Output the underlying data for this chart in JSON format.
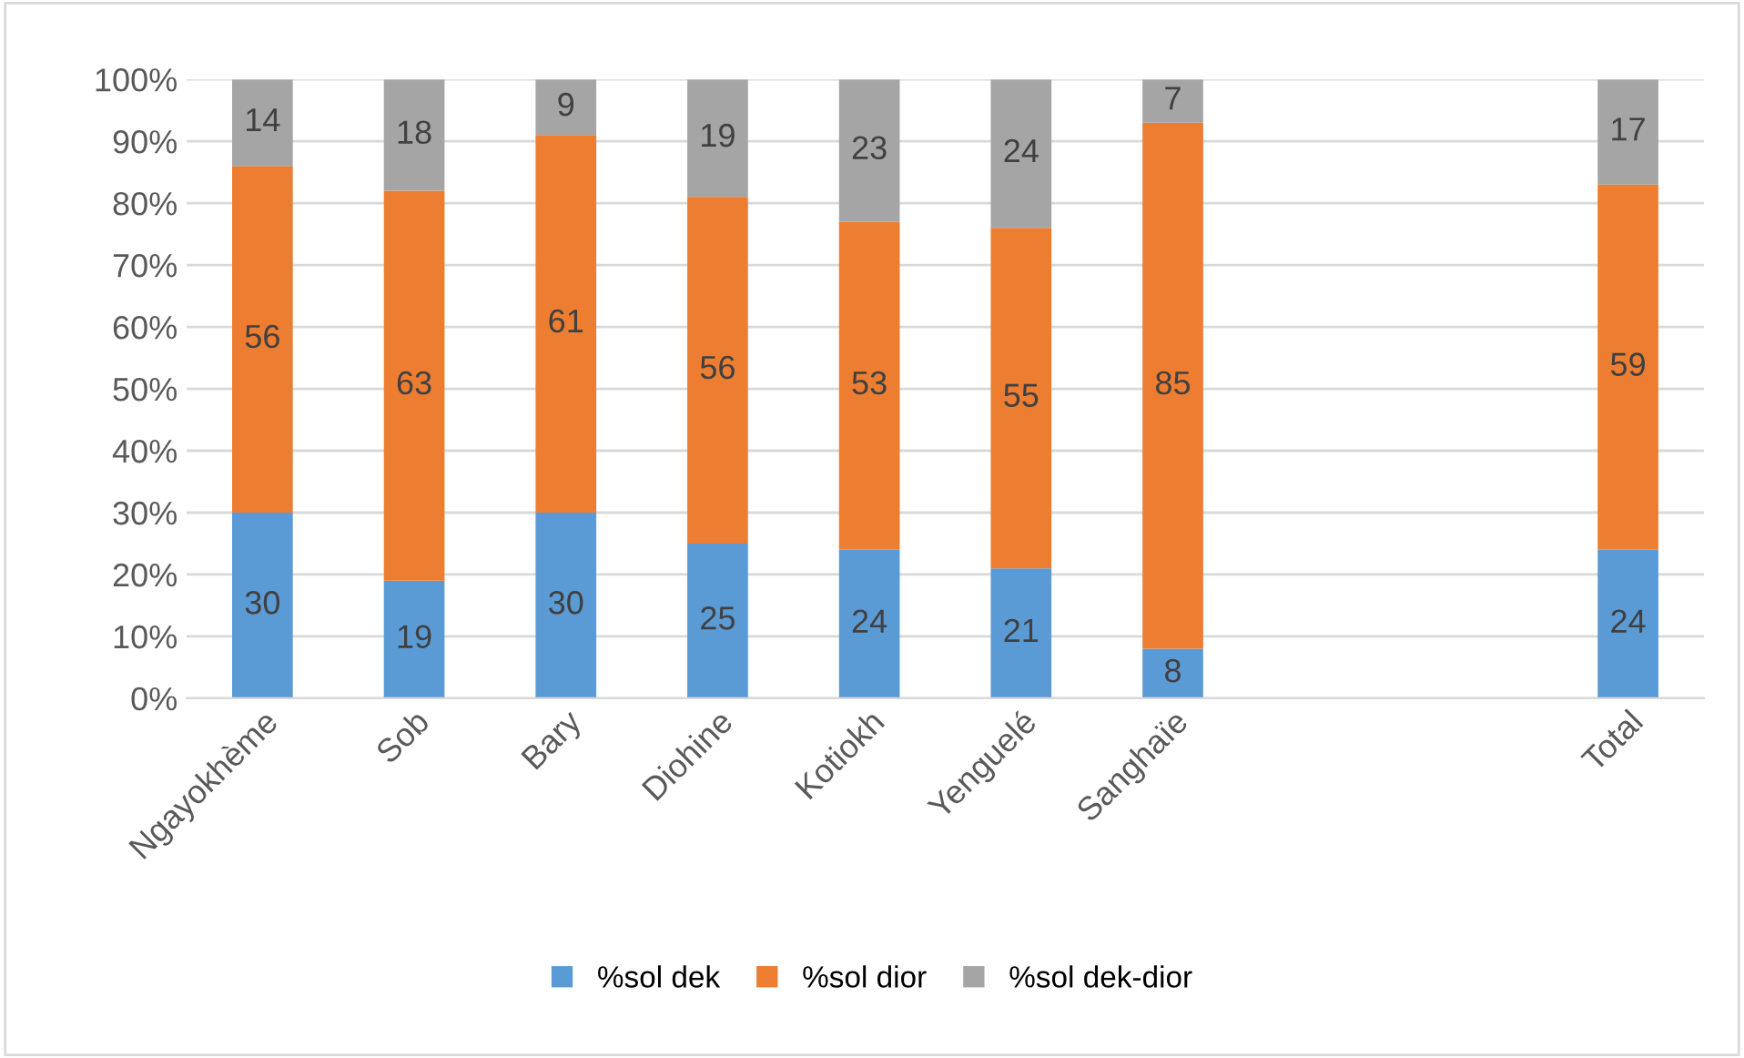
{
  "chart_data": {
    "type": "bar",
    "stacked": true,
    "categories": [
      "Ngayokhème",
      "Sob",
      "Bary",
      "Diohine",
      "Kotiokh",
      "Yenguelé",
      "Sanghaïe",
      null,
      null,
      "Total"
    ],
    "series": [
      {
        "name": "%sol dek",
        "color": "#5b9bd5",
        "values": [
          30,
          19,
          30,
          25,
          24,
          21,
          8,
          null,
          null,
          24
        ]
      },
      {
        "name": "%sol dior",
        "color": "#ed7d31",
        "values": [
          56,
          63,
          61,
          56,
          53,
          55,
          85,
          null,
          null,
          59
        ]
      },
      {
        "name": "%sol dek-dior",
        "color": "#a5a5a5",
        "values": [
          14,
          18,
          9,
          19,
          23,
          24,
          7,
          null,
          null,
          17
        ]
      }
    ],
    "ylim": [
      0,
      100
    ],
    "yticks": [
      {
        "value": 0,
        "label": "0%"
      },
      {
        "value": 10,
        "label": "10%"
      },
      {
        "value": 20,
        "label": "20%"
      },
      {
        "value": 30,
        "label": "30%"
      },
      {
        "value": 40,
        "label": "40%"
      },
      {
        "value": 50,
        "label": "50%"
      },
      {
        "value": 60,
        "label": "60%"
      },
      {
        "value": 70,
        "label": "70%"
      },
      {
        "value": 80,
        "label": "80%"
      },
      {
        "value": 90,
        "label": "90%"
      },
      {
        "value": 100,
        "label": "100%"
      }
    ],
    "grid": "y",
    "legend": "bottom",
    "data_labels": true
  }
}
